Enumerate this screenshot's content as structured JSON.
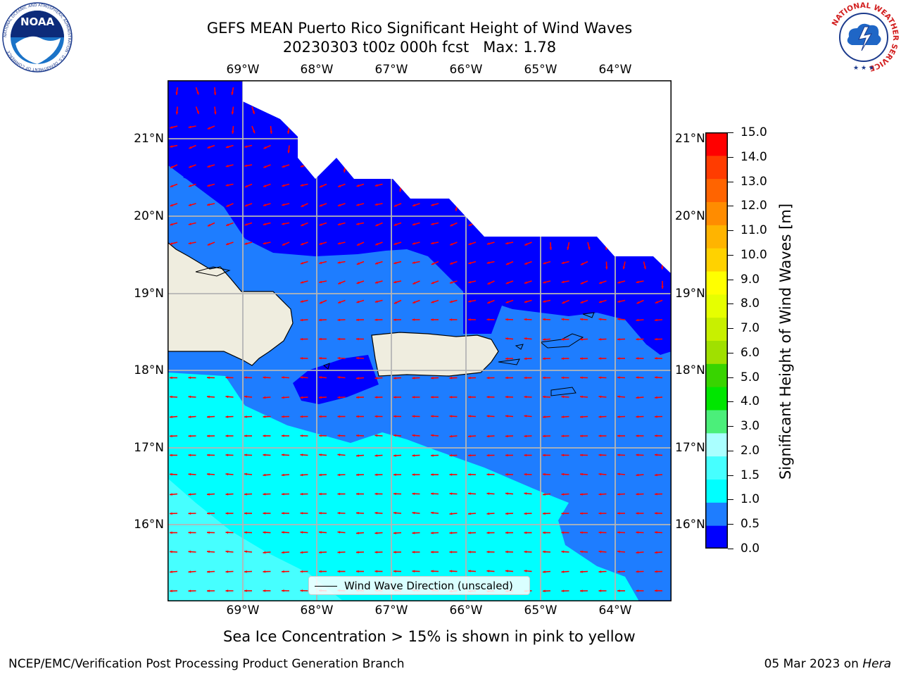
{
  "title": {
    "line1": "GEFS MEAN Puerto Rico Significant Height of Wind Waves",
    "line2": "20230303 t00z 000h fcst   Max: 1.78"
  },
  "logos": {
    "left": "noaa-logo",
    "left_text": "NOAA",
    "left_ring_text": "NATIONAL OCEANIC AND ATMOSPHERIC ADMINISTRATION · U.S. DEPARTMENT OF COMMERCE",
    "right": "national-weather-service-logo",
    "right_ring_text": "NATIONAL WEATHER SERVICE"
  },
  "map": {
    "longitude_labels": [
      "69°W",
      "68°W",
      "67°W",
      "66°W",
      "65°W",
      "64°W"
    ],
    "latitude_labels": [
      "21°N",
      "20°N",
      "19°N",
      "18°N",
      "17°N",
      "16°N"
    ],
    "grid": true,
    "vector_color": "#ff0000",
    "land_color": "#efeddf",
    "legend": {
      "label": "Wind Wave Direction (unscaled)",
      "placement": "lower-center"
    }
  },
  "colorbar": {
    "title": "Significant Height of Wind Waves [m]",
    "tick_labels": [
      "15.0",
      "14.0",
      "13.0",
      "12.0",
      "11.0",
      "10.0",
      "9.0",
      "8.0",
      "7.0",
      "6.0",
      "5.0",
      "4.0",
      "3.0",
      "2.0",
      "1.5",
      "1.0",
      "0.5",
      "0.0"
    ],
    "colors": [
      "#0000ff",
      "#1e7dff",
      "#00ffff",
      "#46ffff",
      "#aaffff",
      "#4bef7a",
      "#00e600",
      "#38d400",
      "#a0e000",
      "#c8f000",
      "#e6ff00",
      "#ffff00",
      "#ffd200",
      "#ffb400",
      "#ff8c00",
      "#ff6400",
      "#ff3c00",
      "#ff0000"
    ]
  },
  "subcaption": "Sea Ice Concentration > 15% is shown in pink to yellow",
  "footer": {
    "left": "NCEP/EMC/Verification Post Processing Product Generation Branch",
    "right_prefix": "05 Mar 2023 on ",
    "right_host": "Hera"
  }
}
